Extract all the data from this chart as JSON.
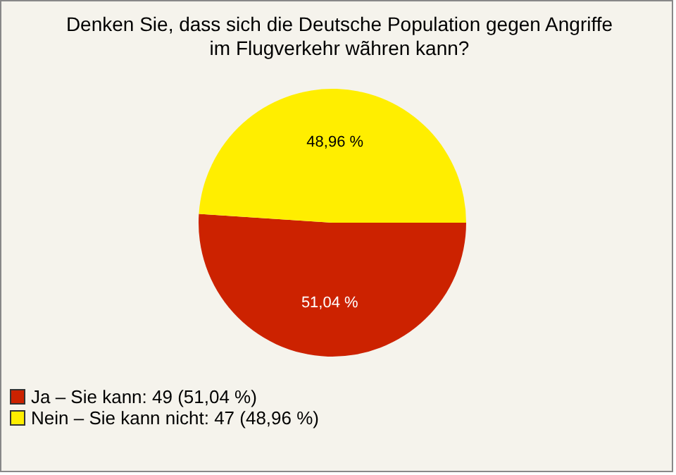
{
  "chart_data": {
    "type": "pie",
    "title": "Denken Sie, dass sich die Deutsche Population gegen Angriffe im Flugverkehr wãhren kann?",
    "categories": [
      "Ja – Sie kann: 49 (51,04 %)",
      "Nein – Sie kann nicht: 47 (48,96 %)"
    ],
    "values": [
      51.04,
      48.96
    ],
    "value_labels": [
      "51,04 %",
      "48,96 %"
    ],
    "colors": [
      "#cc2200",
      "#ffee00"
    ],
    "legend": "bottom left"
  }
}
